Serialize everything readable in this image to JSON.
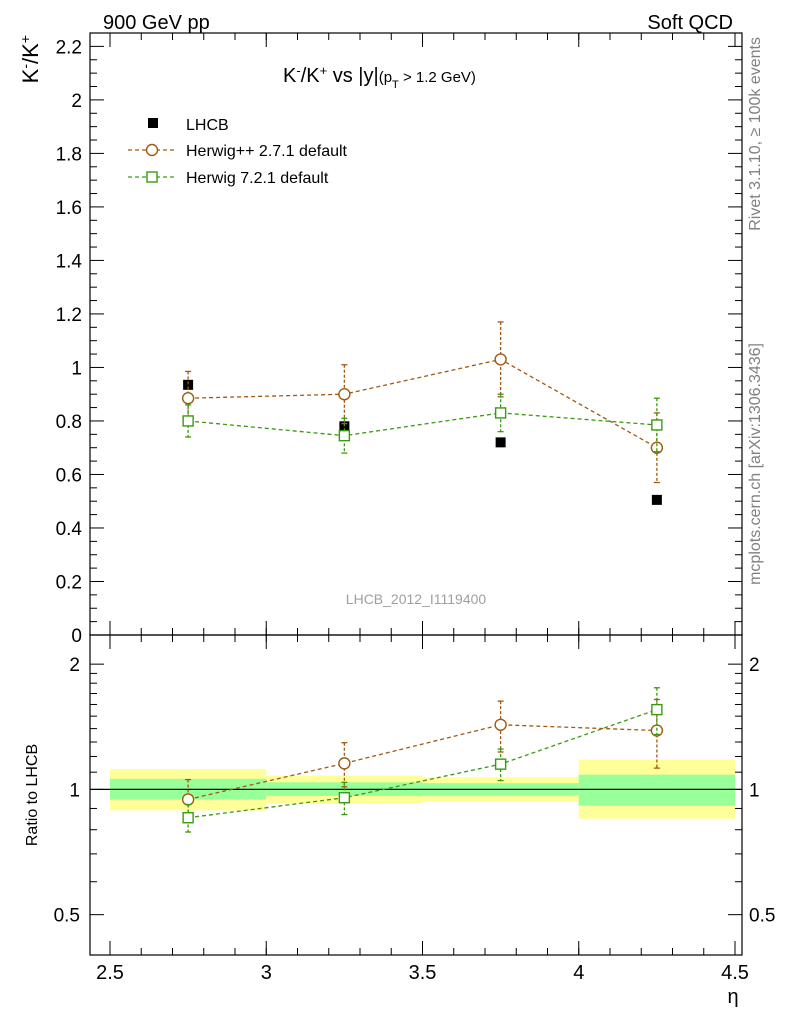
{
  "header": {
    "left": "900 GeV pp",
    "right": "Soft QCD"
  },
  "side_labels": {
    "rivet": "Rivet 3.1.10, ≥ 100k events",
    "mcplots": "mcplots.cern.ch [arXiv:1306.3436]"
  },
  "watermark": "LHCB_2012_I1119400",
  "colors": {
    "data": "#000000",
    "herwigpp": "#a05a10",
    "herwig7": "#3a9a10",
    "band_inner": "#99ff99",
    "band_outer": "#ffff99"
  },
  "chart_data": [
    {
      "type": "scatter",
      "panel": "main",
      "title": "K⁻/K⁺ vs |y|(pT > 1.2 GeV)",
      "ylabel": "K⁻/K⁺",
      "xlim": [
        2.5,
        4.5
      ],
      "ylim": [
        0,
        2.25
      ],
      "yticks": [
        "0",
        "0.2",
        "0.4",
        "0.6",
        "0.8",
        "1",
        "1.2",
        "1.4",
        "1.6",
        "1.8",
        "2",
        "2.2"
      ],
      "legend_position": "top-left",
      "series": [
        {
          "name": "LHCB",
          "marker": "filled-square",
          "x": [
            2.75,
            3.25,
            3.75,
            4.25
          ],
          "y": [
            0.935,
            0.78,
            0.72,
            0.505
          ],
          "yerr": [
            0.012,
            0.012,
            0.012,
            0.01
          ]
        },
        {
          "name": "Herwig++ 2.7.1 default",
          "marker": "open-circle",
          "x": [
            2.75,
            3.25,
            3.75,
            4.25
          ],
          "y": [
            0.885,
            0.9,
            1.03,
            0.7
          ],
          "yerr": [
            0.1,
            0.11,
            0.14,
            0.13
          ]
        },
        {
          "name": "Herwig 7.2.1 default",
          "marker": "open-square",
          "x": [
            2.75,
            3.25,
            3.75,
            4.25
          ],
          "y": [
            0.8,
            0.745,
            0.83,
            0.785
          ],
          "yerr": [
            0.06,
            0.065,
            0.07,
            0.1
          ]
        }
      ]
    },
    {
      "type": "scatter",
      "panel": "ratio",
      "ylabel": "Ratio to LHCB",
      "xlabel": "η",
      "xlim": [
        2.5,
        4.5
      ],
      "ylim": [
        0.4,
        2.35
      ],
      "yscale": "log",
      "xticks": [
        "2.5",
        "3",
        "3.5",
        "4",
        "4.5"
      ],
      "yticks": [
        "0.5",
        "1",
        "2"
      ],
      "reference_bands": [
        {
          "x": [
            2.5,
            3.0
          ],
          "inner": [
            0.945,
            1.06
          ],
          "outer": [
            0.89,
            1.12
          ]
        },
        {
          "x": [
            3.0,
            3.5
          ],
          "inner": [
            0.965,
            1.04
          ],
          "outer": [
            0.925,
            1.08
          ]
        },
        {
          "x": [
            3.5,
            4.0
          ],
          "inner": [
            0.968,
            1.035
          ],
          "outer": [
            0.935,
            1.07
          ]
        },
        {
          "x": [
            4.0,
            4.5
          ],
          "inner": [
            0.915,
            1.085
          ],
          "outer": [
            0.85,
            1.18
          ]
        }
      ],
      "series": [
        {
          "name": "Herwig++ 2.7.1 default",
          "x": [
            2.75,
            3.25,
            3.75,
            4.25
          ],
          "y": [
            0.946,
            1.155,
            1.43,
            1.385
          ],
          "yerr": [
            0.11,
            0.14,
            0.2,
            0.26
          ]
        },
        {
          "name": "Herwig 7.2.1 default",
          "x": [
            2.75,
            3.25,
            3.75,
            4.25
          ],
          "y": [
            0.855,
            0.955,
            1.15,
            1.555
          ],
          "yerr": [
            0.065,
            0.085,
            0.1,
            0.2
          ]
        }
      ]
    }
  ]
}
